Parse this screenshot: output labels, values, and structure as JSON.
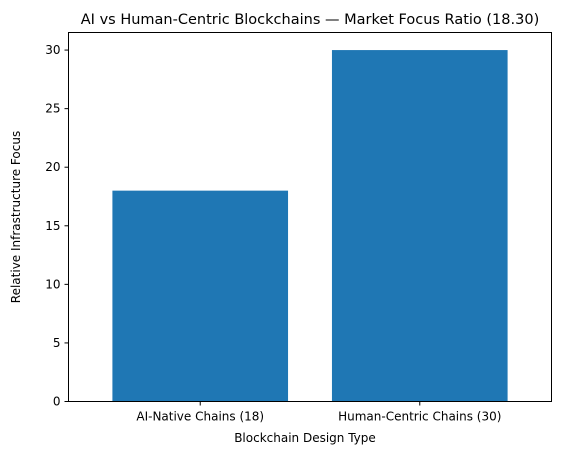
{
  "chart_data": {
    "type": "bar",
    "title": "AI vs Human-Centric Blockchains — Market Focus Ratio (18.30)",
    "xlabel": "Blockchain Design Type",
    "ylabel": "Relative Infrastructure Focus",
    "categories": [
      "AI-Native Chains (18)",
      "Human-Centric Chains (30)"
    ],
    "values": [
      18,
      30
    ],
    "ylim": [
      0,
      31.5
    ],
    "yticks": [
      0,
      5,
      10,
      15,
      20,
      25,
      30
    ],
    "bar_color": "#1f77b4",
    "grid": false,
    "legend": "none"
  }
}
